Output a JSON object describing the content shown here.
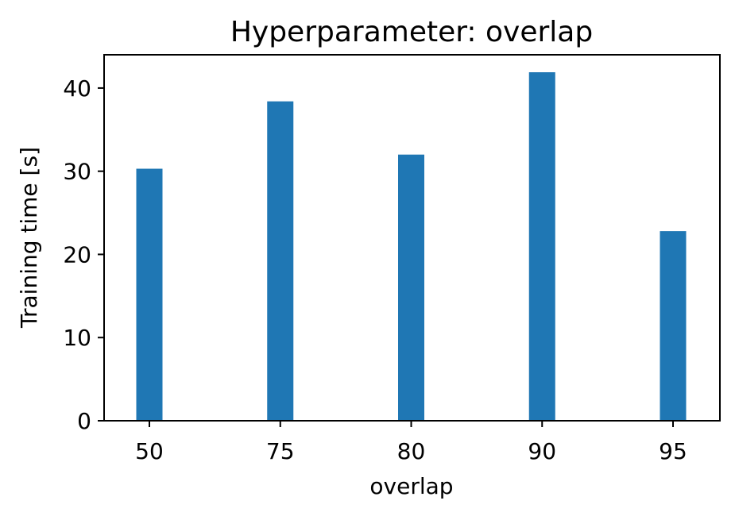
{
  "chart_data": {
    "type": "bar",
    "title": "Hyperparameter: overlap",
    "xlabel": "overlap",
    "ylabel": "Training time [s]",
    "categories": [
      "50",
      "75",
      "80",
      "90",
      "95"
    ],
    "values": [
      30.3,
      38.4,
      32.0,
      41.9,
      22.8
    ],
    "ylim": [
      0,
      44
    ],
    "yticks": [
      "0",
      "10",
      "20",
      "30",
      "40"
    ],
    "grid": false,
    "bar_color": "#1f77b4"
  }
}
